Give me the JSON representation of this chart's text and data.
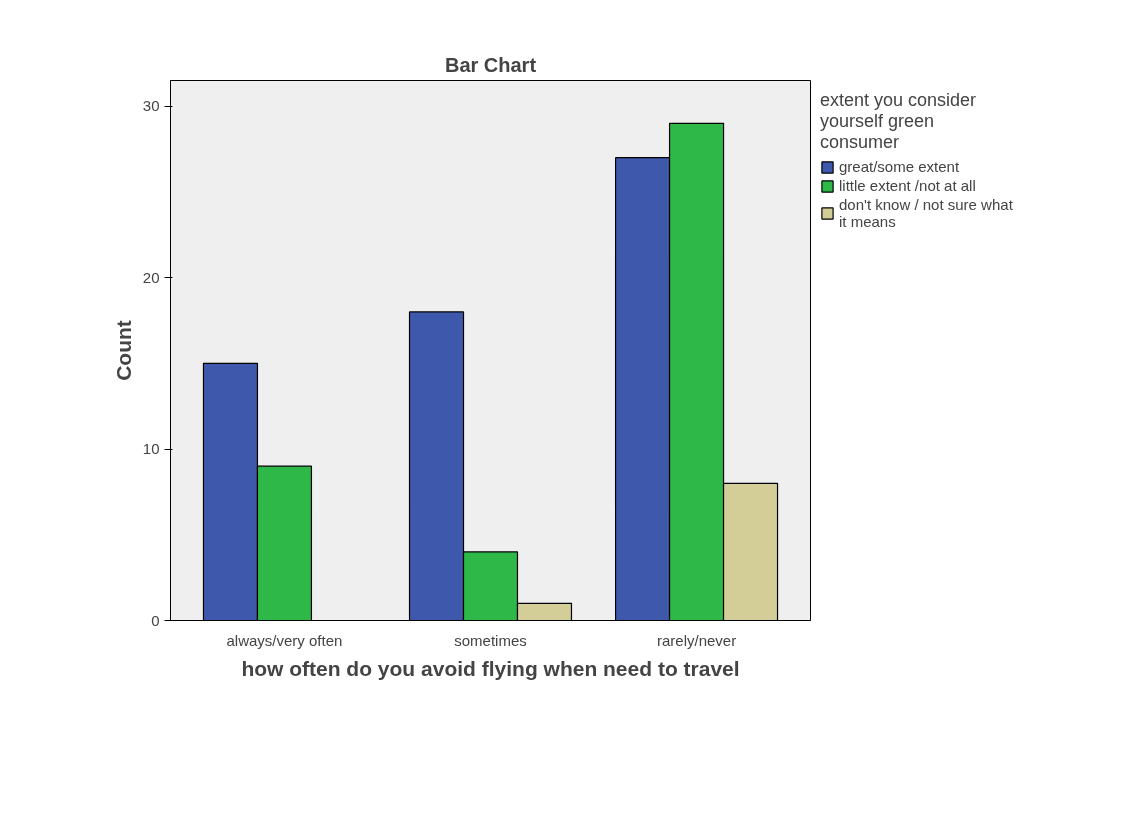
{
  "chart_data": {
    "type": "bar",
    "title": "Bar Chart",
    "xlabel": "how often do you avoid flying when need to travel",
    "ylabel": "Count",
    "categories": [
      "always/very often",
      "sometimes",
      "rarely/never"
    ],
    "series": [
      {
        "name": "great/some extent",
        "color": "#3e58ac",
        "values": [
          15,
          18,
          27
        ]
      },
      {
        "name": "little extent /not at all",
        "color": "#2eb848",
        "values": [
          9,
          4,
          29
        ]
      },
      {
        "name": "don't know / not sure what it means",
        "color": "#d3ce97",
        "values": [
          null,
          1,
          8
        ]
      }
    ],
    "legend_title": "extent you consider yourself green consumer",
    "legend": "top right",
    "grid": false,
    "ylim": [
      0,
      31.5
    ],
    "yticks": [
      0,
      10,
      20,
      30
    ]
  }
}
